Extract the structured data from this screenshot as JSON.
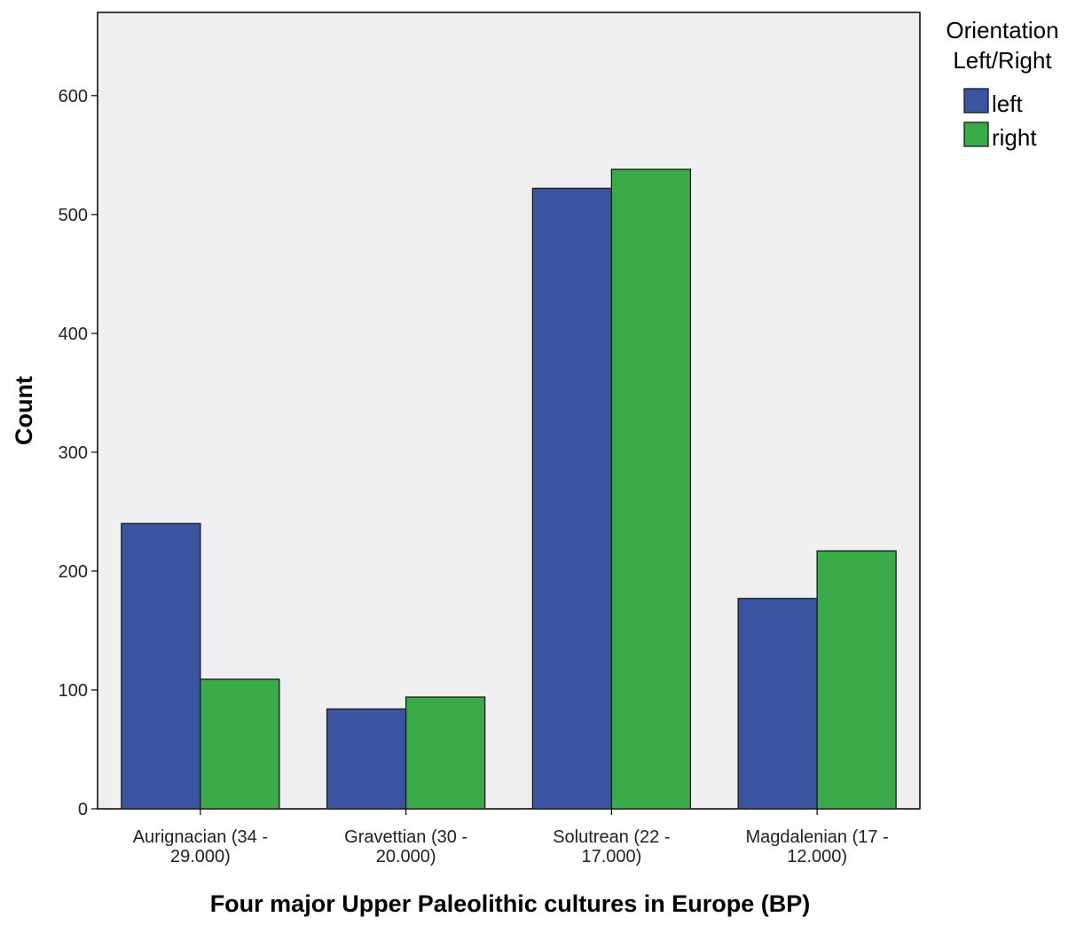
{
  "chart_data": {
    "type": "bar",
    "title": "",
    "xlabel": "Four major Upper Paleolithic cultures in Europe (BP)",
    "ylabel": "Count",
    "ylim": [
      0,
      670
    ],
    "yticks": [
      0,
      100,
      200,
      300,
      400,
      500,
      600
    ],
    "grid": false,
    "categories": [
      [
        "Aurignacian (34 -",
        "29.000)"
      ],
      [
        "Gravettian (30 -",
        "20.000)"
      ],
      [
        "Solutrean (22 -",
        "17.000)"
      ],
      [
        "Magdalenian (17 -",
        "12.000)"
      ]
    ],
    "legend": {
      "title": [
        "Orientation",
        "Left/Right"
      ],
      "placement": "right"
    },
    "series": [
      {
        "name": "left",
        "color": "#3b54a0",
        "values": [
          240,
          84,
          522,
          177
        ]
      },
      {
        "name": "right",
        "color": "#3bab4a",
        "values": [
          109,
          94,
          538,
          217
        ]
      }
    ],
    "plot_background": "#efeff1"
  }
}
